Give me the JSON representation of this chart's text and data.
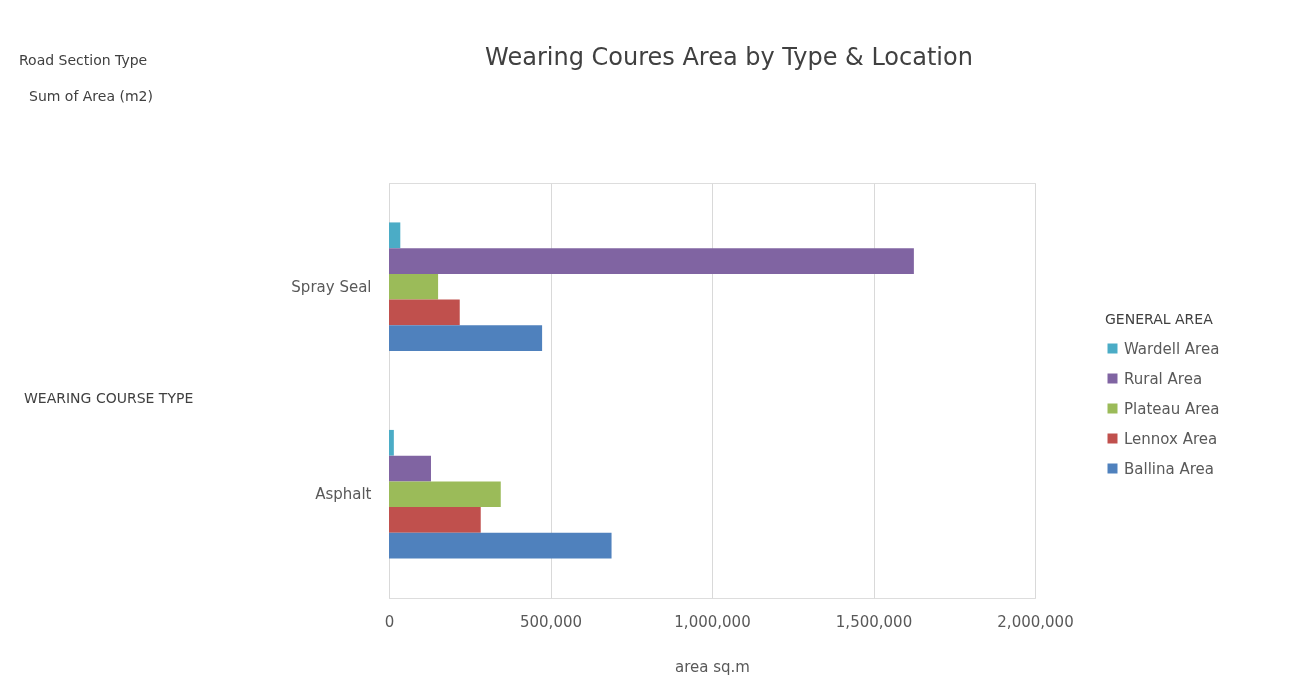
{
  "chart_data": {
    "type": "bar",
    "orientation": "horizontal",
    "title": "Wearing Coures Area by Type & Location",
    "xlabel": "area sq.m",
    "legend_title": "GENERAL AREA",
    "categories": [
      "Spray Seal",
      "Asphalt"
    ],
    "series": [
      {
        "name": "Wardell Area",
        "color": "#4bacc6",
        "values": [
          35000,
          15000
        ]
      },
      {
        "name": "Rural Area",
        "color": "#8064a2",
        "values": [
          1625000,
          130000
        ]
      },
      {
        "name": "Plateau Area",
        "color": "#9bbb59",
        "values": [
          152000,
          346000
        ]
      },
      {
        "name": "Lennox Area",
        "color": "#c0504d",
        "values": [
          219000,
          284000
        ]
      },
      {
        "name": "Ballina Area",
        "color": "#4f81bd",
        "values": [
          474000,
          689000
        ]
      }
    ],
    "xlim": [
      0,
      2000000
    ],
    "xticks": [
      0,
      {
        "value": 500000,
        "label": "500,000"
      },
      {
        "value": 1000000,
        "label": "1,000,000"
      },
      {
        "value": 1500000,
        "label": "1,500,000"
      },
      {
        "value": 2000000,
        "label": "2,000,000"
      }
    ],
    "grid": "x",
    "legend": "right",
    "annotations": [
      "Road Section Type",
      "Sum of Area (m2)",
      "WEARING COURSE TYPE"
    ]
  }
}
